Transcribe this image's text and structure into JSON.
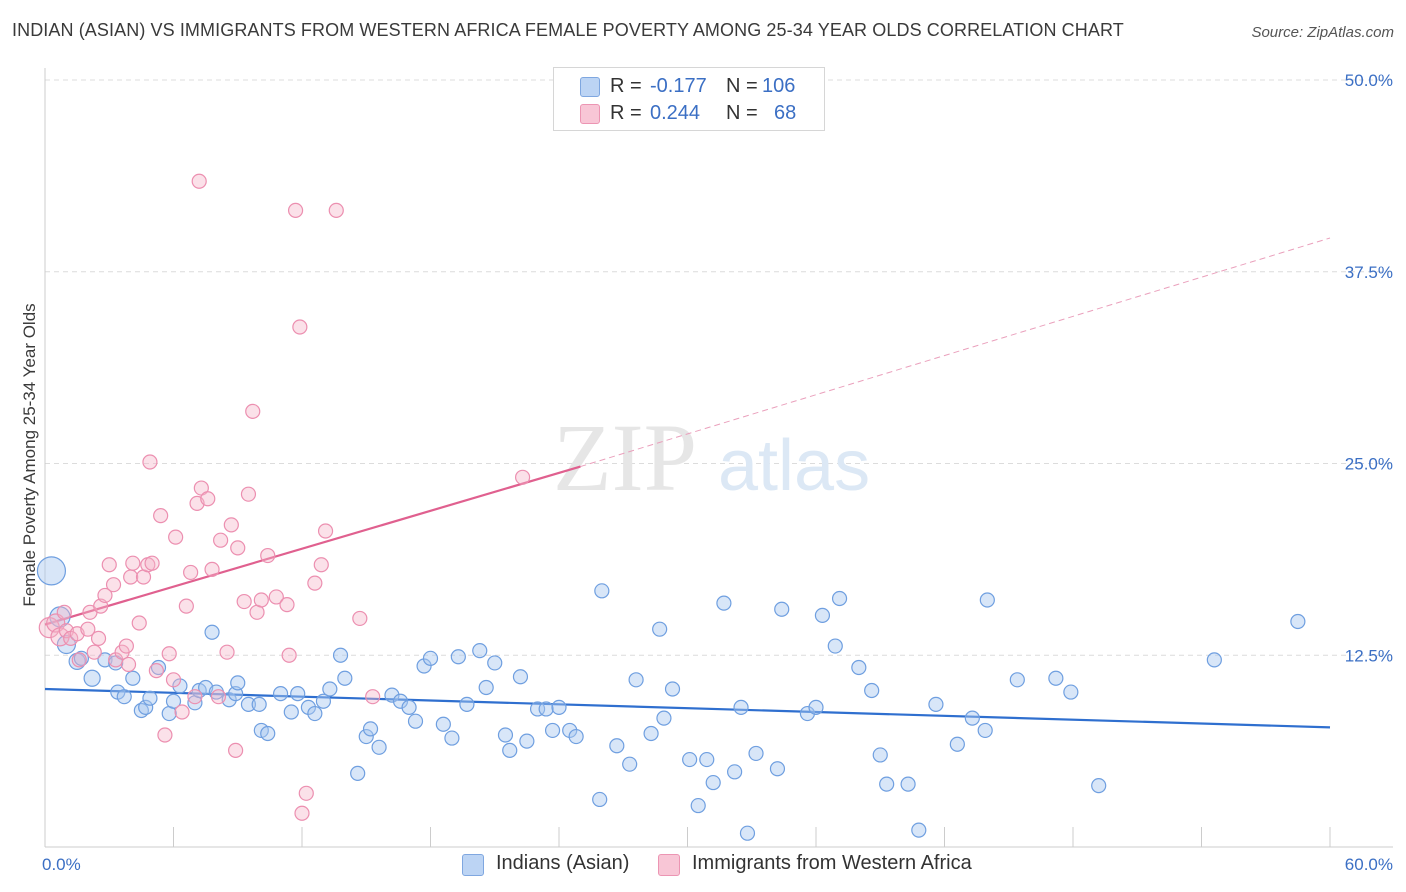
{
  "title": "INDIAN (ASIAN) VS IMMIGRANTS FROM WESTERN AFRICA FEMALE POVERTY AMONG 25-34 YEAR OLDS CORRELATION CHART",
  "source": "Source: ZipAtlas.com",
  "watermark": {
    "zip": "ZIP",
    "atlas": "atlas"
  },
  "colors": {
    "blue": "#5b8fd6",
    "blue_fill": "#a8c8f0",
    "pink": "#e8679a",
    "pink_fill": "#f5b3c8",
    "axis_text": "#3b6fc4"
  },
  "legend_top": [
    {
      "r_label": "R =",
      "r_value": "-0.177",
      "n_label": "N =",
      "n_value": "106"
    },
    {
      "r_label": "R =",
      "r_value": "0.244",
      "n_label": "N =",
      "n_value": "68"
    }
  ],
  "legend_bottom": [
    "Indians (Asian)",
    "Immigrants from Western Africa"
  ],
  "chart_data": {
    "type": "scatter",
    "title": "INDIAN (ASIAN) VS IMMIGRANTS FROM WESTERN AFRICA FEMALE POVERTY AMONG 25-34 YEAR OLDS CORRELATION CHART",
    "xlabel": "",
    "ylabel": "Female Poverty Among 25-34 Year Olds",
    "xlim": [
      0,
      60
    ],
    "ylim": [
      0,
      50
    ],
    "x_tick_labels": [
      "0.0%",
      "60.0%"
    ],
    "y_tick_labels": [
      "12.5%",
      "25.0%",
      "37.5%",
      "50.0%"
    ],
    "y_ticks": [
      12.5,
      25,
      37.5,
      50
    ],
    "grid": true,
    "legend_position": "bottom",
    "series": [
      {
        "name": "Indians (Asian)",
        "r": -0.177,
        "n": 106,
        "trend": {
          "x": [
            0,
            60
          ],
          "y": [
            10.3,
            7.8
          ]
        },
        "points": [
          [
            0.3,
            18.0,
            14
          ],
          [
            0.7,
            15.0,
            10
          ],
          [
            1.0,
            13.2,
            9
          ],
          [
            1.5,
            12.1,
            8
          ],
          [
            1.7,
            12.3,
            7
          ],
          [
            2.2,
            11.0,
            8
          ],
          [
            2.8,
            12.2,
            7
          ],
          [
            3.3,
            12.0,
            7
          ],
          [
            3.4,
            10.1,
            7
          ],
          [
            3.7,
            9.8,
            7
          ],
          [
            4.1,
            11.0,
            7
          ],
          [
            4.5,
            8.9,
            7
          ],
          [
            4.7,
            9.1,
            7
          ],
          [
            4.9,
            9.7,
            7
          ],
          [
            5.3,
            11.7,
            7
          ],
          [
            5.8,
            8.7,
            7
          ],
          [
            6.0,
            9.5,
            7
          ],
          [
            6.3,
            10.5,
            7
          ],
          [
            7.0,
            9.4,
            7
          ],
          [
            7.2,
            10.2,
            7
          ],
          [
            7.5,
            10.4,
            7
          ],
          [
            7.8,
            14.0,
            7
          ],
          [
            8.0,
            10.1,
            7
          ],
          [
            8.6,
            9.6,
            7
          ],
          [
            8.9,
            10.0,
            7
          ],
          [
            9.0,
            10.7,
            7
          ],
          [
            9.5,
            9.3,
            7
          ],
          [
            10.0,
            9.3,
            7
          ],
          [
            10.1,
            7.6,
            7
          ],
          [
            10.4,
            7.4,
            7
          ],
          [
            11.0,
            10.0,
            7
          ],
          [
            11.5,
            8.8,
            7
          ],
          [
            11.8,
            10.0,
            7
          ],
          [
            12.3,
            9.1,
            7
          ],
          [
            12.6,
            8.7,
            7
          ],
          [
            13.0,
            9.5,
            7
          ],
          [
            13.3,
            10.3,
            7
          ],
          [
            13.8,
            12.5,
            7
          ],
          [
            14.0,
            11.0,
            7
          ],
          [
            14.6,
            4.8,
            7
          ],
          [
            15.0,
            7.2,
            7
          ],
          [
            15.2,
            7.7,
            7
          ],
          [
            15.6,
            6.5,
            7
          ],
          [
            16.2,
            9.9,
            7
          ],
          [
            16.6,
            9.5,
            7
          ],
          [
            17.0,
            9.1,
            7
          ],
          [
            17.3,
            8.2,
            7
          ],
          [
            17.7,
            11.8,
            7
          ],
          [
            18.0,
            12.3,
            7
          ],
          [
            18.6,
            8.0,
            7
          ],
          [
            19.0,
            7.1,
            7
          ],
          [
            19.3,
            12.4,
            7
          ],
          [
            19.7,
            9.3,
            7
          ],
          [
            20.3,
            12.8,
            7
          ],
          [
            20.6,
            10.4,
            7
          ],
          [
            21.0,
            12.0,
            7
          ],
          [
            21.5,
            7.3,
            7
          ],
          [
            21.7,
            6.3,
            7
          ],
          [
            22.2,
            11.1,
            7
          ],
          [
            22.5,
            6.9,
            7
          ],
          [
            23.0,
            9.0,
            7
          ],
          [
            23.4,
            9.0,
            7
          ],
          [
            23.7,
            7.6,
            7
          ],
          [
            24.0,
            9.1,
            7
          ],
          [
            24.5,
            7.6,
            7
          ],
          [
            24.8,
            7.2,
            7
          ],
          [
            26.0,
            16.7,
            7
          ],
          [
            25.9,
            3.1,
            7
          ],
          [
            26.7,
            6.6,
            7
          ],
          [
            27.3,
            5.4,
            7
          ],
          [
            27.6,
            10.9,
            7
          ],
          [
            28.3,
            7.4,
            7
          ],
          [
            28.7,
            14.2,
            7
          ],
          [
            28.9,
            8.4,
            7
          ],
          [
            29.3,
            10.3,
            7
          ],
          [
            30.1,
            5.7,
            7
          ],
          [
            30.5,
            2.7,
            7
          ],
          [
            30.9,
            5.7,
            7
          ],
          [
            31.2,
            4.2,
            7
          ],
          [
            31.7,
            15.9,
            7
          ],
          [
            32.2,
            4.9,
            7
          ],
          [
            32.5,
            9.1,
            7
          ],
          [
            32.8,
            0.9,
            7
          ],
          [
            33.2,
            6.1,
            7
          ],
          [
            34.2,
            5.1,
            7
          ],
          [
            34.4,
            15.5,
            7
          ],
          [
            35.6,
            8.7,
            7
          ],
          [
            36.0,
            9.1,
            7
          ],
          [
            36.3,
            15.1,
            7
          ],
          [
            36.9,
            13.1,
            7
          ],
          [
            37.1,
            16.2,
            7
          ],
          [
            38.0,
            11.7,
            7
          ],
          [
            38.6,
            10.2,
            7
          ],
          [
            39.0,
            6.0,
            7
          ],
          [
            39.3,
            4.1,
            7
          ],
          [
            40.3,
            4.1,
            7
          ],
          [
            40.8,
            1.1,
            7
          ],
          [
            41.6,
            9.3,
            7
          ],
          [
            42.6,
            6.7,
            7
          ],
          [
            43.3,
            8.4,
            7
          ],
          [
            43.9,
            7.6,
            7
          ],
          [
            44.0,
            16.1,
            7
          ],
          [
            45.4,
            10.9,
            7
          ],
          [
            47.2,
            11.0,
            7
          ],
          [
            47.9,
            10.1,
            7
          ],
          [
            49.2,
            4.0,
            7
          ],
          [
            54.6,
            12.2,
            7
          ],
          [
            58.5,
            14.7,
            7
          ]
        ]
      },
      {
        "name": "Immigrants from Western Africa",
        "r": 0.244,
        "n": 68,
        "trend": {
          "x": [
            0,
            25.0
          ],
          "y": [
            14.5,
            24.8
          ]
        },
        "trend_extension": {
          "x": [
            25.0,
            60
          ],
          "y": [
            24.8,
            39.7
          ]
        },
        "points": [
          [
            0.2,
            14.3,
            10
          ],
          [
            0.5,
            14.6,
            9
          ],
          [
            0.7,
            13.7,
            9
          ],
          [
            0.9,
            15.3,
            7
          ],
          [
            1.0,
            14.1,
            7
          ],
          [
            1.2,
            13.6,
            7
          ],
          [
            1.5,
            13.9,
            7
          ],
          [
            1.6,
            12.2,
            7
          ],
          [
            2.0,
            14.2,
            7
          ],
          [
            2.1,
            15.3,
            7
          ],
          [
            2.3,
            12.7,
            7
          ],
          [
            2.5,
            13.6,
            7
          ],
          [
            2.6,
            15.7,
            7
          ],
          [
            2.8,
            16.4,
            7
          ],
          [
            3.0,
            18.4,
            7
          ],
          [
            3.2,
            17.1,
            7
          ],
          [
            3.3,
            12.2,
            7
          ],
          [
            3.6,
            12.7,
            7
          ],
          [
            3.8,
            13.1,
            7
          ],
          [
            3.9,
            11.9,
            7
          ],
          [
            4.0,
            17.6,
            7
          ],
          [
            4.1,
            18.5,
            7
          ],
          [
            4.4,
            14.6,
            7
          ],
          [
            4.6,
            17.6,
            7
          ],
          [
            4.8,
            18.4,
            7
          ],
          [
            4.9,
            25.1,
            7
          ],
          [
            5.0,
            18.5,
            7
          ],
          [
            5.2,
            11.5,
            7
          ],
          [
            5.4,
            21.6,
            7
          ],
          [
            5.6,
            7.3,
            7
          ],
          [
            5.8,
            12.6,
            7
          ],
          [
            6.0,
            10.9,
            7
          ],
          [
            6.1,
            20.2,
            7
          ],
          [
            6.4,
            8.8,
            7
          ],
          [
            6.6,
            15.7,
            7
          ],
          [
            6.8,
            17.9,
            7
          ],
          [
            7.0,
            9.8,
            7
          ],
          [
            7.1,
            22.4,
            7
          ],
          [
            7.3,
            23.4,
            7
          ],
          [
            7.6,
            22.7,
            7
          ],
          [
            7.8,
            18.1,
            7
          ],
          [
            8.1,
            9.8,
            7
          ],
          [
            8.2,
            20.0,
            7
          ],
          [
            8.5,
            12.7,
            7
          ],
          [
            8.7,
            21.0,
            7
          ],
          [
            8.9,
            6.3,
            7
          ],
          [
            9.0,
            19.5,
            7
          ],
          [
            9.3,
            16.0,
            7
          ],
          [
            9.5,
            23.0,
            7
          ],
          [
            9.7,
            28.4,
            7
          ],
          [
            9.9,
            15.3,
            7
          ],
          [
            10.1,
            16.1,
            7
          ],
          [
            10.4,
            19.0,
            7
          ],
          [
            10.8,
            16.3,
            7
          ],
          [
            11.3,
            15.8,
            7
          ],
          [
            11.4,
            12.5,
            7
          ],
          [
            11.7,
            41.5,
            7
          ],
          [
            11.9,
            33.9,
            7
          ],
          [
            12.0,
            2.2,
            7
          ],
          [
            12.2,
            3.5,
            7
          ],
          [
            12.6,
            17.2,
            7
          ],
          [
            12.9,
            18.4,
            7
          ],
          [
            13.1,
            20.6,
            7
          ],
          [
            13.6,
            41.5,
            7
          ],
          [
            14.7,
            14.9,
            7
          ],
          [
            15.3,
            9.8,
            7
          ],
          [
            7.2,
            43.4,
            7
          ],
          [
            22.3,
            24.1,
            7
          ]
        ]
      }
    ]
  }
}
